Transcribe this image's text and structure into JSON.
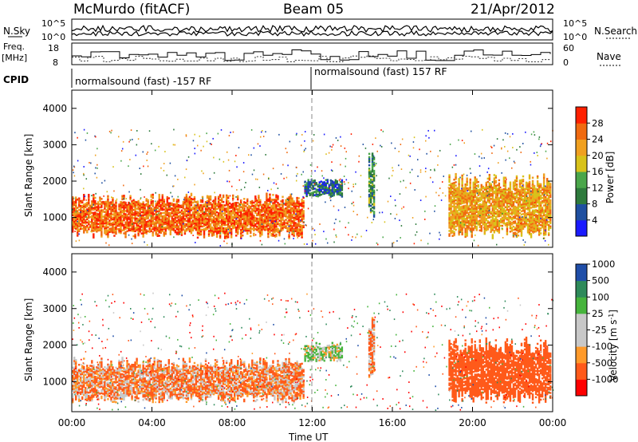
{
  "header": {
    "station": "McMurdo (fitACF)",
    "beam": "Beam 05",
    "date": "21/Apr/2012"
  },
  "left_labels": {
    "nsky": "N.Sky",
    "freq_line1": "Freq.",
    "freq_line2": "[MHz]",
    "cpid": "CPID"
  },
  "right_labels": {
    "nsearch": "N.Search",
    "nave": "Nave"
  },
  "small_axes": {
    "noise_top": "10^5",
    "noise_bottom": "10^0",
    "freq_top": "18",
    "freq_bottom": "8",
    "nave_top": "60",
    "nave_bottom": "0"
  },
  "cpid_segments": [
    {
      "label": "normalsound (fast) -157 RF"
    },
    {
      "label": "normalsound (fast) 157 RF"
    }
  ],
  "x_axis": {
    "label": "Time UT",
    "ticks": [
      "00:00",
      "04:00",
      "08:00",
      "12:00",
      "16:00",
      "20:00",
      "00:00"
    ]
  },
  "colors": {
    "power_scale": [
      "#1a1aff",
      "#1f4fa0",
      "#2e7a3c",
      "#4aa64a",
      "#d8c21a",
      "#f0a020",
      "#f06a10",
      "#ff2000"
    ],
    "velocity_scale": [
      "#ff0000",
      "#ff5a1a",
      "#ff9a2a",
      "#c8c8c8",
      "#c8c8c8",
      "#46b43c",
      "#2e8a5a",
      "#1f4ea8"
    ]
  },
  "chart_data": [
    {
      "type": "heatmap",
      "title": "Power",
      "ylabel": "Slant Range [km]",
      "xlabel": "",
      "ylim": [
        180,
        4500
      ],
      "yticks": [
        1000,
        2000,
        3000,
        4000
      ],
      "colorbar": {
        "label": "Power [dB]",
        "ticks": [
          "4",
          "8",
          "12",
          "16",
          "20",
          "24",
          "28"
        ],
        "range": [
          0,
          32
        ]
      },
      "scatter_bands": [
        {
          "t_start": 0.0,
          "t_end": 11.6,
          "range_low": 550,
          "range_high": 1650,
          "value": 26
        },
        {
          "t_start": 11.6,
          "t_end": 13.5,
          "range_low": 1600,
          "range_high": 2050,
          "value": 8
        },
        {
          "t_start": 14.8,
          "t_end": 15.1,
          "range_low": 1200,
          "range_high": 2800,
          "value": 12
        },
        {
          "t_start": 18.8,
          "t_end": 23.9,
          "range_low": 600,
          "range_high": 2200,
          "value": 22
        }
      ]
    },
    {
      "type": "heatmap",
      "title": "Velocity",
      "ylabel": "Slant Range [km]",
      "xlabel": "Time UT",
      "ylim": [
        180,
        4500
      ],
      "yticks": [
        1000,
        2000,
        3000,
        4000
      ],
      "colorbar": {
        "label": "Velocity [m s^-1]",
        "ticks": [
          "-1000",
          "-500",
          "-100",
          "-25",
          "25",
          "100",
          "500",
          "1000"
        ],
        "range": [
          -1200,
          1200
        ]
      },
      "scatter_bands": [
        {
          "t_start": 0.0,
          "t_end": 11.6,
          "range_low": 550,
          "range_high": 1650,
          "value": -100
        },
        {
          "t_start": 11.6,
          "t_end": 13.5,
          "range_low": 1600,
          "range_high": 2050,
          "value": 100
        },
        {
          "t_start": 14.8,
          "t_end": 15.1,
          "range_low": 1200,
          "range_high": 2800,
          "value": -100
        },
        {
          "t_start": 18.8,
          "t_end": 23.9,
          "range_low": 600,
          "range_high": 2200,
          "value": -300
        }
      ]
    }
  ]
}
